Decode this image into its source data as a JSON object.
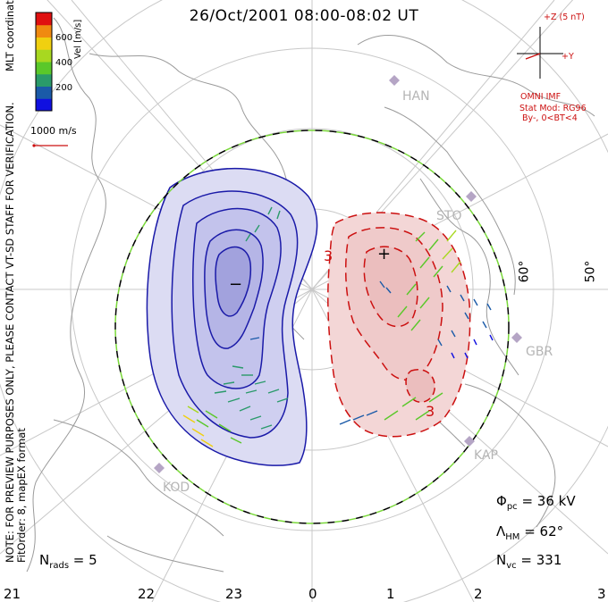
{
  "title": "26/Oct/2001 08:00-08:02 UT",
  "side_note": "NOTE: FOR PREVIEW PURPOSES ONLY, PLEASE CONTACT VT-SD STAFF FOR VERIFICATION.",
  "side_note2": "FitOrder: 8, mapEX format",
  "coord_label": "MLT coordinates",
  "colorbar": {
    "title": "Vel [m/s]",
    "ticks": [
      "600",
      "400",
      "200"
    ],
    "colors": [
      "#1010e0",
      "#1a5aa8",
      "#2a9a6a",
      "#5ac82a",
      "#a8d820",
      "#f0d010",
      "#f08a10",
      "#e01010"
    ]
  },
  "scale_label": "1000 m/s",
  "imf": {
    "z_label": "+Z (5 nT)",
    "y_label": "+Y",
    "omni": "OMNI IMF",
    "stat_mod": "Stat Mod: RG96",
    "conditions": "By-, 0<BT<4"
  },
  "sites": [
    {
      "name": "HAN"
    },
    {
      "name": "STO"
    },
    {
      "name": "GBR"
    },
    {
      "name": "KAP"
    },
    {
      "name": "KOD"
    }
  ],
  "lat_labels": [
    "60°",
    "50°"
  ],
  "contour_labels": {
    "neg": "−",
    "pos": "+",
    "three": "3"
  },
  "stats": {
    "phi_sym": "Φ",
    "phi_sub": "pc",
    "phi_val": " = 36 kV",
    "lam_sym": "Λ",
    "lam_sub": "HM",
    "lam_val": " = 62°",
    "nvc_sym": "N",
    "nvc_sub": "vc",
    "nvc_val": " = 331",
    "nrads_sym": "N",
    "nrads_sub": "rads",
    "nrads_val": " = 5"
  },
  "mlt_ticks": [
    "21",
    "22",
    "23",
    "0",
    "1",
    "2",
    "3"
  ],
  "colors": {
    "neg_fill": "#c9c9ef",
    "neg_line": "#1a1aa8",
    "pos_fill": "#f3d3d3",
    "pos_line": "#cc1010",
    "boundary_a": "#000000",
    "boundary_b": "#7ad83a",
    "grid": "#c8c8c8",
    "coast": "#9a9a9a"
  }
}
